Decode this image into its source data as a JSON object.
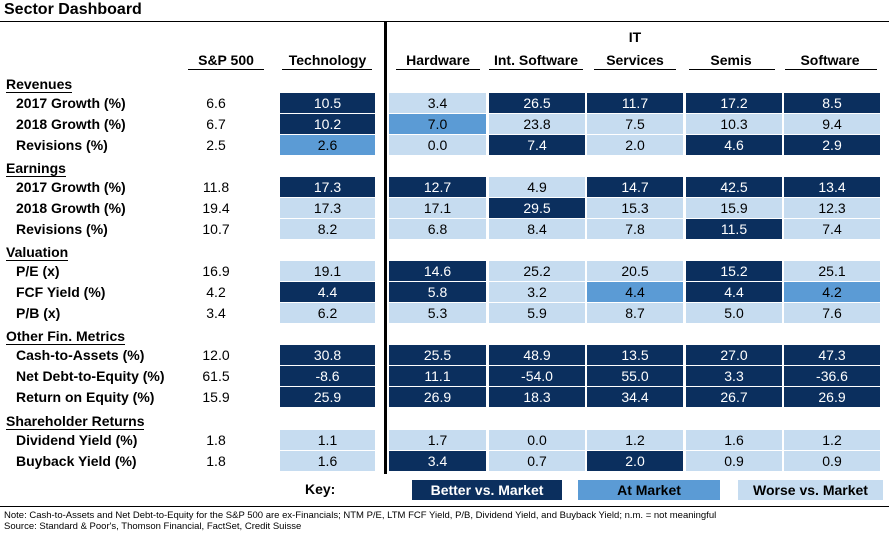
{
  "title": "Sector Dashboard",
  "columns": {
    "sp500": "S&P 500",
    "technology": "Technology",
    "hardware": "Hardware",
    "int_software": "Int. Software",
    "it_services_top": "IT",
    "it_services_bottom": "Services",
    "semis": "Semis",
    "software": "Software"
  },
  "sections": [
    {
      "label": "Revenues",
      "rows": [
        {
          "label": "2017 Growth (%)",
          "sp": "6.6",
          "cells": [
            [
              "10.5",
              "b"
            ],
            [
              "3.4",
              "w"
            ],
            [
              "26.5",
              "b"
            ],
            [
              "11.7",
              "b"
            ],
            [
              "17.2",
              "b"
            ],
            [
              "8.5",
              "b"
            ]
          ]
        },
        {
          "label": "2018 Growth (%)",
          "sp": "6.7",
          "cells": [
            [
              "10.2",
              "b"
            ],
            [
              "7.0",
              "a"
            ],
            [
              "23.8",
              "w"
            ],
            [
              "7.5",
              "w"
            ],
            [
              "10.3",
              "w"
            ],
            [
              "9.4",
              "w"
            ]
          ]
        },
        {
          "label": "Revisions (%)",
          "sp": "2.5",
          "cells": [
            [
              "2.6",
              "a"
            ],
            [
              "0.0",
              "w"
            ],
            [
              "7.4",
              "b"
            ],
            [
              "2.0",
              "w"
            ],
            [
              "4.6",
              "b"
            ],
            [
              "2.9",
              "b"
            ]
          ]
        }
      ]
    },
    {
      "label": "Earnings",
      "rows": [
        {
          "label": "2017 Growth (%)",
          "sp": "11.8",
          "cells": [
            [
              "17.3",
              "b"
            ],
            [
              "12.7",
              "b"
            ],
            [
              "4.9",
              "w"
            ],
            [
              "14.7",
              "b"
            ],
            [
              "42.5",
              "b"
            ],
            [
              "13.4",
              "b"
            ]
          ]
        },
        {
          "label": "2018 Growth (%)",
          "sp": "19.4",
          "cells": [
            [
              "17.3",
              "w"
            ],
            [
              "17.1",
              "w"
            ],
            [
              "29.5",
              "b"
            ],
            [
              "15.3",
              "w"
            ],
            [
              "15.9",
              "w"
            ],
            [
              "12.3",
              "w"
            ]
          ]
        },
        {
          "label": "Revisions (%)",
          "sp": "10.7",
          "cells": [
            [
              "8.2",
              "w"
            ],
            [
              "6.8",
              "w"
            ],
            [
              "8.4",
              "w"
            ],
            [
              "7.8",
              "w"
            ],
            [
              "11.5",
              "b"
            ],
            [
              "7.4",
              "w"
            ]
          ]
        }
      ]
    },
    {
      "label": "Valuation",
      "rows": [
        {
          "label": "P/E (x)",
          "sp": "16.9",
          "cells": [
            [
              "19.1",
              "w"
            ],
            [
              "14.6",
              "b"
            ],
            [
              "25.2",
              "w"
            ],
            [
              "20.5",
              "w"
            ],
            [
              "15.2",
              "b"
            ],
            [
              "25.1",
              "w"
            ]
          ]
        },
        {
          "label": "FCF Yield (%)",
          "sp": "4.2",
          "cells": [
            [
              "4.4",
              "b"
            ],
            [
              "5.8",
              "b"
            ],
            [
              "3.2",
              "w"
            ],
            [
              "4.4",
              "a"
            ],
            [
              "4.4",
              "b"
            ],
            [
              "4.2",
              "a"
            ]
          ]
        },
        {
          "label": "P/B (x)",
          "sp": "3.4",
          "cells": [
            [
              "6.2",
              "w"
            ],
            [
              "5.3",
              "w"
            ],
            [
              "5.9",
              "w"
            ],
            [
              "8.7",
              "w"
            ],
            [
              "5.0",
              "w"
            ],
            [
              "7.6",
              "w"
            ]
          ]
        }
      ]
    },
    {
      "label": "Other Fin. Metrics",
      "rows": [
        {
          "label": "Cash-to-Assets (%)",
          "sp": "12.0",
          "cells": [
            [
              "30.8",
              "b"
            ],
            [
              "25.5",
              "b"
            ],
            [
              "48.9",
              "b"
            ],
            [
              "13.5",
              "b"
            ],
            [
              "27.0",
              "b"
            ],
            [
              "47.3",
              "b"
            ]
          ]
        },
        {
          "label": "Net Debt-to-Equity (%)",
          "sp": "61.5",
          "cells": [
            [
              "-8.6",
              "b"
            ],
            [
              "11.1",
              "b"
            ],
            [
              "-54.0",
              "b"
            ],
            [
              "55.0",
              "b"
            ],
            [
              "3.3",
              "b"
            ],
            [
              "-36.6",
              "b"
            ]
          ]
        },
        {
          "label": "Return on Equity (%)",
          "sp": "15.9",
          "cells": [
            [
              "25.9",
              "b"
            ],
            [
              "26.9",
              "b"
            ],
            [
              "18.3",
              "b"
            ],
            [
              "34.4",
              "b"
            ],
            [
              "26.7",
              "b"
            ],
            [
              "26.9",
              "b"
            ]
          ]
        }
      ]
    },
    {
      "label": "Shareholder Returns",
      "rows": [
        {
          "label": "Dividend Yield (%)",
          "sp": "1.8",
          "cells": [
            [
              "1.1",
              "w"
            ],
            [
              "1.7",
              "w"
            ],
            [
              "0.0",
              "w"
            ],
            [
              "1.2",
              "w"
            ],
            [
              "1.6",
              "w"
            ],
            [
              "1.2",
              "w"
            ]
          ]
        },
        {
          "label": "Buyback Yield (%)",
          "sp": "1.8",
          "cells": [
            [
              "1.6",
              "w"
            ],
            [
              "3.4",
              "b"
            ],
            [
              "0.7",
              "w"
            ],
            [
              "2.0",
              "b"
            ],
            [
              "0.9",
              "w"
            ],
            [
              "0.9",
              "w"
            ]
          ]
        }
      ]
    }
  ],
  "key": {
    "label": "Key:",
    "better": "Better vs. Market",
    "at": "At Market",
    "worse": "Worse vs. Market"
  },
  "colors": {
    "better": "#0b2f5e",
    "at": "#5b9bd5",
    "worse": "#c6dcf0"
  },
  "note": "Note: Cash-to-Assets and Net Debt-to-Equity for the S&P 500 are ex-Financials; NTM P/E, LTM FCF Yield, P/B, Dividend Yield, and Buyback Yield; n.m. = not meaningful",
  "source": "Source: Standard & Poor's, Thomson Financial, FactSet, Credit Suisse"
}
